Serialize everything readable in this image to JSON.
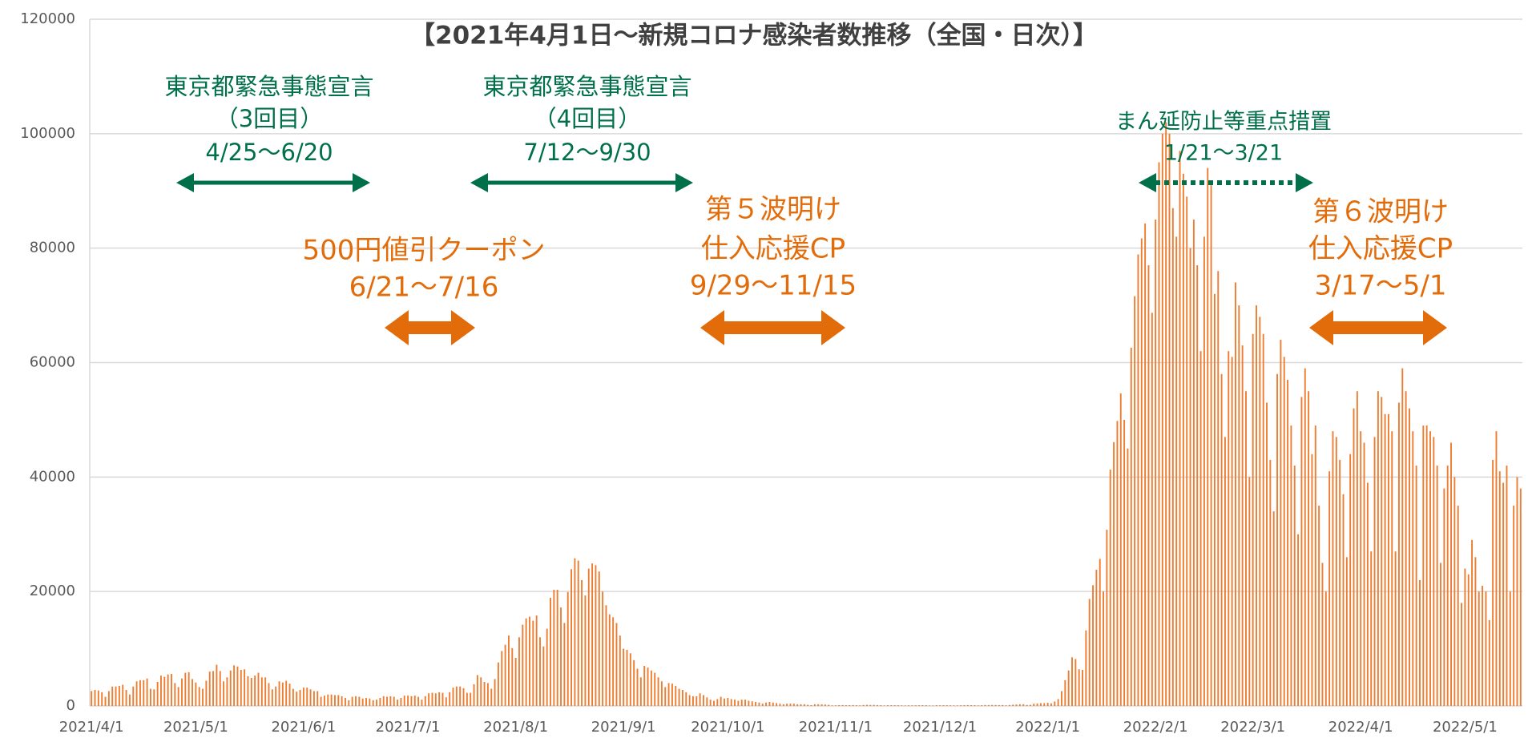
{
  "chart_data": {
    "type": "bar",
    "title": "【2021年4月1日～新規コロナ感染者数推移（全国・日次）】",
    "categories": [
      "2021/4/1",
      null,
      null,
      null,
      null,
      null,
      null,
      null,
      null,
      null,
      null,
      null,
      null,
      null,
      null,
      null,
      null,
      null,
      null,
      null,
      null,
      null,
      null,
      null,
      null,
      null,
      null,
      null,
      null,
      null,
      "2021/5/1",
      null,
      null,
      null,
      null,
      null,
      null,
      null,
      null,
      null,
      null,
      null,
      null,
      null,
      null,
      null,
      null,
      null,
      null,
      null,
      null,
      null,
      null,
      null,
      null,
      null,
      null,
      null,
      null,
      null,
      null,
      "2021/6/1",
      null,
      null,
      null,
      null,
      null,
      null,
      null,
      null,
      null,
      null,
      null,
      null,
      null,
      null,
      null,
      null,
      null,
      null,
      null,
      null,
      null,
      null,
      null,
      null,
      null,
      null,
      null,
      null,
      null,
      "2021/7/1",
      null,
      null,
      null,
      null,
      null,
      null,
      null,
      null,
      null,
      null,
      null,
      null,
      null,
      null,
      null,
      null,
      null,
      null,
      null,
      null,
      null,
      null,
      null,
      null,
      null,
      null,
      null,
      null,
      null,
      null,
      "2021/8/1",
      null,
      null,
      null,
      null,
      null,
      null,
      null,
      null,
      null,
      null,
      null,
      null,
      null,
      null,
      null,
      null,
      null,
      null,
      null,
      null,
      null,
      null,
      null,
      null,
      null,
      null,
      null,
      null,
      null,
      null,
      "2021/9/1",
      null,
      null,
      null,
      null,
      null,
      null,
      null,
      null,
      null,
      null,
      null,
      null,
      null,
      null,
      null,
      null,
      null,
      null,
      null,
      null,
      null,
      null,
      null,
      null,
      null,
      null,
      null,
      null,
      null,
      "2021/10/1",
      null,
      null,
      null,
      null,
      null,
      null,
      null,
      null,
      null,
      null,
      null,
      null,
      null,
      null,
      null,
      null,
      null,
      null,
      null,
      null,
      null,
      null,
      null,
      null,
      null,
      null,
      null,
      null,
      null,
      null,
      "2021/11/1",
      null,
      null,
      null,
      null,
      null,
      null,
      null,
      null,
      null,
      null,
      null,
      null,
      null,
      null,
      null,
      null,
      null,
      null,
      null,
      null,
      null,
      null,
      null,
      null,
      null,
      null,
      null,
      null,
      null,
      "2021/12/1",
      null,
      null,
      null,
      null,
      null,
      null,
      null,
      null,
      null,
      null,
      null,
      null,
      null,
      null,
      null,
      null,
      null,
      null,
      null,
      null,
      null,
      null,
      null,
      null,
      null,
      null,
      null,
      null,
      null,
      null,
      "2022/1/1",
      null,
      null,
      null,
      null,
      null,
      null,
      null,
      null,
      null,
      null,
      null,
      null,
      null,
      null,
      null,
      null,
      null,
      null,
      null,
      null,
      null,
      null,
      null,
      null,
      null,
      null,
      null,
      null,
      null,
      null,
      "2022/2/1",
      null,
      null,
      null,
      null,
      null,
      null,
      null,
      null,
      null,
      null,
      null,
      null,
      null,
      null,
      null,
      null,
      null,
      null,
      null,
      null,
      null,
      null,
      null,
      null,
      null,
      null,
      null,
      "2022/3/1",
      null,
      null,
      null,
      null,
      null,
      null,
      null,
      null,
      null,
      null,
      null,
      null,
      null,
      null,
      null,
      null,
      null,
      null,
      null,
      null,
      null,
      null,
      null,
      null,
      null,
      null,
      null,
      null,
      null,
      null,
      "2022/4/1",
      null,
      null,
      null,
      null,
      null,
      null,
      null,
      null,
      null,
      null,
      null,
      null,
      null,
      null,
      null,
      null,
      null,
      null,
      null,
      null,
      null,
      null,
      null,
      null,
      null,
      null,
      null,
      null,
      null,
      "2022/5/1",
      null,
      null,
      null,
      null,
      null,
      null,
      null,
      null,
      null,
      null,
      null,
      null,
      null,
      null,
      null,
      null
    ],
    "values": [
      2600,
      2800,
      2700,
      2400,
      1600,
      2600,
      3400,
      3400,
      3500,
      3700,
      2800,
      2000,
      3400,
      4300,
      4500,
      4500,
      4800,
      3000,
      2900,
      4200,
      5300,
      5100,
      5500,
      5600,
      4000,
      3300,
      4800,
      5800,
      5900,
      4700,
      4100,
      3300,
      3000,
      4400,
      6000,
      6100,
      7200,
      6100,
      4300,
      5000,
      6200,
      7100,
      6900,
      6300,
      6400,
      5200,
      4900,
      5300,
      5800,
      5000,
      5000,
      4000,
      2900,
      3400,
      4300,
      4100,
      4400,
      3900,
      3000,
      2500,
      2800,
      3200,
      3200,
      2900,
      2600,
      2600,
      1600,
      1800,
      2000,
      2000,
      1900,
      1900,
      1700,
      1400,
      1000,
      1600,
      1700,
      1600,
      1300,
      1400,
      1300,
      1000,
      1100,
      1400,
      1700,
      1600,
      1700,
      1600,
      1100,
      1400,
      1800,
      1800,
      1700,
      1800,
      1600,
      1100,
      1700,
      2200,
      2300,
      2200,
      2400,
      2300,
      1500,
      2400,
      3200,
      3400,
      3400,
      3100,
      2300,
      2300,
      3800,
      5400,
      5000,
      4200,
      4000,
      3000,
      4700,
      7600,
      9600,
      10700,
      12300,
      10100,
      8400,
      12000,
      14200,
      15300,
      15600,
      14900,
      15800,
      12000,
      10400,
      13500,
      18900,
      20300,
      20300,
      17200,
      14500,
      19900,
      23900,
      25800,
      25400,
      22000,
      19300,
      24000,
      24900,
      24600,
      23500,
      20000,
      17600,
      16000,
      15500,
      14500,
      12300,
      10000,
      9800,
      9200,
      8000,
      6500,
      5000,
      7000,
      6700,
      6200,
      5800,
      5000,
      4300,
      3300,
      4000,
      3900,
      3500,
      3000,
      2800,
      2400,
      1900,
      1700,
      1700,
      2200,
      1900,
      1500,
      1100,
      900,
      1200,
      1600,
      1300,
      1400,
      1200,
      1100,
      900,
      1100,
      1100,
      900,
      800,
      700,
      600,
      400,
      600,
      700,
      600,
      500,
      400,
      300,
      400,
      400,
      400,
      300,
      300,
      300,
      200,
      150,
      300,
      300,
      280,
      250,
      200,
      90,
      100,
      150,
      160,
      130,
      150,
      160,
      120,
      100,
      170,
      200,
      180,
      190,
      160,
      130,
      80,
      130,
      130,
      130,
      120,
      100,
      80,
      110,
      100,
      120,
      120,
      140,
      130,
      80,
      80,
      130,
      110,
      130,
      120,
      110,
      90,
      90,
      120,
      150,
      160,
      140,
      130,
      90,
      130,
      170,
      160,
      180,
      170,
      160,
      160,
      100,
      170,
      220,
      250,
      300,
      300,
      180,
      200,
      390,
      430,
      490,
      500,
      550,
      450,
      780,
      1200,
      2600,
      4500,
      6200,
      8500,
      8200,
      6400,
      6300,
      13200,
      18700,
      21100,
      23800,
      25700,
      20000,
      30800,
      41300,
      46100,
      49800,
      54600,
      50000,
      45000,
      62600,
      71600,
      78900,
      81700,
      84300,
      77000,
      68700,
      85000,
      95000,
      100000,
      102000,
      100000,
      87000,
      82000,
      97000,
      93000,
      89000,
      80000,
      85000,
      77000,
      62000,
      82000,
      94000,
      91000,
      72000,
      76000,
      58000,
      47000,
      62000,
      61000,
      74000,
      70000,
      63000,
      55000,
      40000,
      65000,
      70000,
      68000,
      65000,
      53000,
      43000,
      34000,
      58000,
      64000,
      61000,
      57000,
      49000,
      42000,
      30000,
      54000,
      59000,
      55000,
      44000,
      49000,
      35000,
      25000,
      20000,
      41000,
      48000,
      47000,
      43000,
      37000,
      26000,
      44000,
      52000,
      55000,
      48000,
      46000,
      39000,
      27000,
      47000,
      55000,
      54000,
      51000,
      51000,
      48000,
      27000,
      53000,
      59000,
      55000,
      52000,
      48000,
      42000,
      22000,
      49000,
      49000,
      48000,
      47000,
      42000,
      25000,
      38000,
      42000,
      46000,
      40000,
      35000,
      18000,
      24000,
      23000,
      29000,
      26000,
      20000,
      21000,
      20000,
      15000,
      43000,
      48000,
      41000,
      39000,
      42000,
      20000,
      35000,
      40000,
      38000
    ],
    "color": "#ed7d31",
    "ylim": [
      0,
      120000
    ],
    "yticks": [
      0,
      20000,
      40000,
      60000,
      80000,
      100000,
      120000
    ],
    "grid": true,
    "annotations": [
      {
        "lines": [
          "東京都緊急事態宣言",
          "（3回目）",
          "4/25～6/20"
        ],
        "color": "#00704a"
      },
      {
        "lines": [
          "東京都緊急事態宣言",
          "（4回目）",
          "7/12～9/30"
        ],
        "color": "#00704a"
      },
      {
        "lines": [
          "まん延防止等重点措置",
          "1/21～3/21"
        ],
        "color": "#00704a"
      },
      {
        "lines": [
          "500円値引クーポン",
          "6/21～7/16"
        ],
        "color": "#e36c0a"
      },
      {
        "lines": [
          "第５波明け",
          "仕入応援CP",
          "9/29～11/15"
        ],
        "color": "#e36c0a"
      },
      {
        "lines": [
          "第６波明け",
          "仕入応援CP",
          "3/17～5/1"
        ],
        "color": "#e36c0a"
      }
    ]
  }
}
